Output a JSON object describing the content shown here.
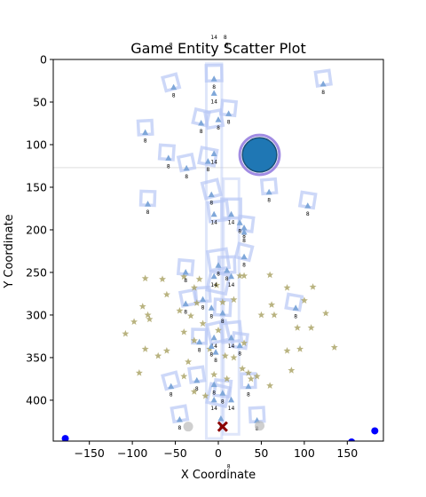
{
  "chart_data": {
    "type": "scatter",
    "title": "Game Entity Scatter Plot",
    "xlabel": "X Coordinate",
    "ylabel": "Y Coordinate",
    "xlim": [
      -192,
      192
    ],
    "ylim": [
      448,
      0
    ],
    "y_inverted": true,
    "x_ticks": [
      -150,
      -100,
      -50,
      0,
      50,
      100,
      150
    ],
    "y_ticks": [
      0,
      50,
      100,
      150,
      200,
      250,
      300,
      350,
      400
    ],
    "grid": false,
    "legend": "none",
    "horizontal_line_y": 127,
    "colors": {
      "player": "#1f77b4",
      "player_ring": "#8a6fdc",
      "enemy": "#7fa7d9",
      "frame": "#b8c8f5",
      "star": "#a8a060",
      "dot": "#0000ff",
      "cross": "#8b0000",
      "grey": "#bbbbbb"
    },
    "player": {
      "x": 48,
      "y": 112,
      "r": 20
    },
    "enemies": [
      {
        "x": -52,
        "y": 33,
        "label": "8"
      },
      {
        "x": -5,
        "y": 23,
        "label": "8"
      },
      {
        "x": -5,
        "y": 40,
        "label": "14"
      },
      {
        "x": 122,
        "y": 29,
        "label": "8"
      },
      {
        "x": 12,
        "y": 64,
        "label": "8"
      },
      {
        "x": 0,
        "y": 71,
        "label": "8"
      },
      {
        "x": -20,
        "y": 75,
        "label": "8"
      },
      {
        "x": -85,
        "y": 86,
        "label": "8"
      },
      {
        "x": -5,
        "y": 111,
        "label": "14"
      },
      {
        "x": -58,
        "y": 116,
        "label": "8"
      },
      {
        "x": -12,
        "y": 120,
        "label": "8"
      },
      {
        "x": -37,
        "y": 128,
        "label": "8"
      },
      {
        "x": 59,
        "y": 156,
        "label": "8"
      },
      {
        "x": -82,
        "y": 170,
        "label": "8"
      },
      {
        "x": 104,
        "y": 172,
        "label": "8"
      },
      {
        "x": -8,
        "y": 159,
        "label": "8"
      },
      {
        "x": -5,
        "y": 182,
        "label": "14"
      },
      {
        "x": 15,
        "y": 182,
        "label": "14"
      },
      {
        "x": 25,
        "y": 192,
        "label": "8"
      },
      {
        "x": 30,
        "y": 198,
        "label": "8"
      },
      {
        "x": 30,
        "y": 203,
        "label": "8"
      },
      {
        "x": 30,
        "y": 232,
        "label": "8"
      },
      {
        "x": 0,
        "y": 242,
        "label": "8"
      },
      {
        "x": 10,
        "y": 248,
        "label": "8"
      },
      {
        "x": -38,
        "y": 250,
        "label": "8"
      },
      {
        "x": -5,
        "y": 255,
        "label": "14"
      },
      {
        "x": 15,
        "y": 255,
        "label": "14"
      },
      {
        "x": -18,
        "y": 282,
        "label": "8"
      },
      {
        "x": -38,
        "y": 287,
        "label": "8"
      },
      {
        "x": -8,
        "y": 292,
        "label": "8"
      },
      {
        "x": 5,
        "y": 298,
        "label": "8"
      },
      {
        "x": 90,
        "y": 292,
        "label": "8"
      },
      {
        "x": -5,
        "y": 327,
        "label": "14"
      },
      {
        "x": 15,
        "y": 327,
        "label": "14"
      },
      {
        "x": -22,
        "y": 332,
        "label": "8"
      },
      {
        "x": -8,
        "y": 337,
        "label": "8"
      },
      {
        "x": 25,
        "y": 336,
        "label": "8"
      },
      {
        "x": -3,
        "y": 344,
        "label": "8"
      },
      {
        "x": -55,
        "y": 384,
        "label": "8"
      },
      {
        "x": -25,
        "y": 377,
        "label": "8"
      },
      {
        "x": -5,
        "y": 382,
        "label": "8"
      },
      {
        "x": 35,
        "y": 384,
        "label": "8"
      },
      {
        "x": 5,
        "y": 392,
        "label": "8"
      },
      {
        "x": -5,
        "y": 400,
        "label": "14"
      },
      {
        "x": 15,
        "y": 400,
        "label": "14"
      },
      {
        "x": -45,
        "y": 423,
        "label": "8"
      },
      {
        "x": 45,
        "y": 424,
        "label": "8"
      },
      {
        "x": 3,
        "y": 422,
        "label": "8"
      }
    ],
    "frames": [
      {
        "x": -55,
        "y": 27,
        "s": 16
      },
      {
        "x": 122,
        "y": 22,
        "s": 16
      },
      {
        "x": -5,
        "y": 16,
        "s": 18
      },
      {
        "x": 12,
        "y": 57,
        "s": 16
      },
      {
        "x": -20,
        "y": 68,
        "s": 16
      },
      {
        "x": -5,
        "y": 70,
        "s": 18
      },
      {
        "x": -85,
        "y": 80,
        "s": 16
      },
      {
        "x": -60,
        "y": 109,
        "s": 16
      },
      {
        "x": -12,
        "y": 114,
        "s": 18
      },
      {
        "x": -37,
        "y": 121,
        "s": 16
      },
      {
        "x": 59,
        "y": 149,
        "s": 16
      },
      {
        "x": -82,
        "y": 163,
        "s": 16
      },
      {
        "x": 104,
        "y": 165,
        "s": 16
      },
      {
        "x": -8,
        "y": 152,
        "s": 18
      },
      {
        "x": 0,
        "y": 178,
        "s": 22
      },
      {
        "x": 15,
        "y": 175,
        "s": 22
      },
      {
        "x": 32,
        "y": 193,
        "s": 16
      },
      {
        "x": 30,
        "y": 226,
        "s": 16
      },
      {
        "x": 0,
        "y": 235,
        "s": 22
      },
      {
        "x": 10,
        "y": 241,
        "s": 18
      },
      {
        "x": -38,
        "y": 244,
        "s": 16
      },
      {
        "x": 0,
        "y": 262,
        "s": 22
      },
      {
        "x": -35,
        "y": 280,
        "s": 16
      },
      {
        "x": -18,
        "y": 276,
        "s": 16
      },
      {
        "x": 5,
        "y": 291,
        "s": 18
      },
      {
        "x": 88,
        "y": 285,
        "s": 16
      },
      {
        "x": 0,
        "y": 320,
        "s": 22
      },
      {
        "x": 15,
        "y": 320,
        "s": 22
      },
      {
        "x": -22,
        "y": 325,
        "s": 16
      },
      {
        "x": 25,
        "y": 330,
        "s": 16
      },
      {
        "x": -55,
        "y": 377,
        "s": 16
      },
      {
        "x": -25,
        "y": 370,
        "s": 16
      },
      {
        "x": 35,
        "y": 377,
        "s": 16
      },
      {
        "x": 5,
        "y": 386,
        "s": 18
      },
      {
        "x": 0,
        "y": 394,
        "s": 22
      },
      {
        "x": -45,
        "y": 416,
        "s": 16
      },
      {
        "x": 45,
        "y": 417,
        "s": 16
      }
    ],
    "frame_columns": [
      {
        "x": -5,
        "y1": 5,
        "y2": 445
      },
      {
        "x": 15,
        "y1": 140,
        "y2": 440
      }
    ],
    "stars": [
      {
        "x": -85,
        "y": 257
      },
      {
        "x": -65,
        "y": 258
      },
      {
        "x": -40,
        "y": 255
      },
      {
        "x": -28,
        "y": 268
      },
      {
        "x": -60,
        "y": 276
      },
      {
        "x": -88,
        "y": 290
      },
      {
        "x": -82,
        "y": 300
      },
      {
        "x": -80,
        "y": 305
      },
      {
        "x": -108,
        "y": 322
      },
      {
        "x": -98,
        "y": 308
      },
      {
        "x": -45,
        "y": 295
      },
      {
        "x": -32,
        "y": 301
      },
      {
        "x": -25,
        "y": 286
      },
      {
        "x": -18,
        "y": 310
      },
      {
        "x": -40,
        "y": 320
      },
      {
        "x": -28,
        "y": 330
      },
      {
        "x": -60,
        "y": 342
      },
      {
        "x": -70,
        "y": 348
      },
      {
        "x": -85,
        "y": 340
      },
      {
        "x": -92,
        "y": 368
      },
      {
        "x": -35,
        "y": 355
      },
      {
        "x": -40,
        "y": 372
      },
      {
        "x": -28,
        "y": 390
      },
      {
        "x": -15,
        "y": 395
      },
      {
        "x": 5,
        "y": 285
      },
      {
        "x": 18,
        "y": 282
      },
      {
        "x": 25,
        "y": 254
      },
      {
        "x": 30,
        "y": 254
      },
      {
        "x": 60,
        "y": 253
      },
      {
        "x": 80,
        "y": 268
      },
      {
        "x": 110,
        "y": 267
      },
      {
        "x": 62,
        "y": 288
      },
      {
        "x": 50,
        "y": 300
      },
      {
        "x": 65,
        "y": 300
      },
      {
        "x": 100,
        "y": 283
      },
      {
        "x": 125,
        "y": 298
      },
      {
        "x": 92,
        "y": 315
      },
      {
        "x": 108,
        "y": 315
      },
      {
        "x": 135,
        "y": 338
      },
      {
        "x": 95,
        "y": 340
      },
      {
        "x": 80,
        "y": 342
      },
      {
        "x": 85,
        "y": 365
      },
      {
        "x": 60,
        "y": 383
      },
      {
        "x": 45,
        "y": 372
      },
      {
        "x": 35,
        "y": 368
      },
      {
        "x": 28,
        "y": 363
      },
      {
        "x": 38,
        "y": 375
      },
      {
        "x": 18,
        "y": 350
      },
      {
        "x": 8,
        "y": 348
      },
      {
        "x": 30,
        "y": 333
      },
      {
        "x": -5,
        "y": 370
      },
      {
        "x": 10,
        "y": 375
      },
      {
        "x": -10,
        "y": 340
      },
      {
        "x": 0,
        "y": 318
      },
      {
        "x": -2,
        "y": 265
      },
      {
        "x": -22,
        "y": 258
      }
    ],
    "dots": [
      {
        "x": -178,
        "y": 445
      },
      {
        "x": 182,
        "y": 436
      },
      {
        "x": 155,
        "y": 449
      }
    ],
    "grey_points": [
      {
        "x": -35,
        "y": 431
      },
      {
        "x": 48,
        "y": 430
      }
    ],
    "cross": {
      "x": 5,
      "y": 431
    },
    "stray_labels": [
      {
        "x": -5,
        "y": -24,
        "text": "14"
      },
      {
        "x": 8,
        "y": -24,
        "text": "8"
      },
      {
        "x": -55,
        "y": -15,
        "text": "8"
      },
      {
        "x": 10,
        "y": -15,
        "text": "8"
      },
      {
        "x": 12,
        "y": 480,
        "text": "8"
      }
    ]
  }
}
